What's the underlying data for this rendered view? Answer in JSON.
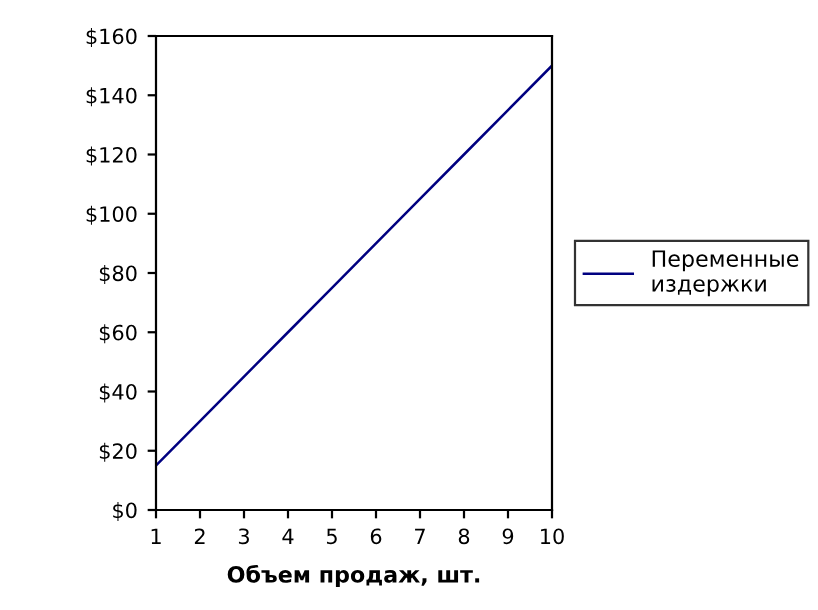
{
  "chart_data": {
    "type": "line",
    "xlabel": "Объем продаж, шт.",
    "x": [
      1,
      2,
      3,
      4,
      5,
      6,
      7,
      8,
      9,
      10
    ],
    "series": [
      {
        "name": "Переменные\nиздержки",
        "color": "#000080",
        "values": [
          15,
          30,
          45,
          60,
          75,
          90,
          105,
          120,
          135,
          150
        ]
      }
    ],
    "xlim": [
      1,
      10
    ],
    "xticks": [
      1,
      2,
      3,
      4,
      5,
      6,
      7,
      8,
      9,
      10
    ],
    "ylim": [
      0,
      160
    ],
    "yticks": [
      {
        "value": 0,
        "label": "$0"
      },
      {
        "value": 20,
        "label": "$20"
      },
      {
        "value": 40,
        "label": "$40"
      },
      {
        "value": 60,
        "label": "$60"
      },
      {
        "value": 80,
        "label": "$80"
      },
      {
        "value": 100,
        "label": "$100"
      },
      {
        "value": 120,
        "label": "$120"
      },
      {
        "value": 140,
        "label": "$140"
      },
      {
        "value": 160,
        "label": "$160"
      }
    ],
    "grid": false,
    "legend": "right",
    "marker": "none",
    "line_style": "solid"
  }
}
